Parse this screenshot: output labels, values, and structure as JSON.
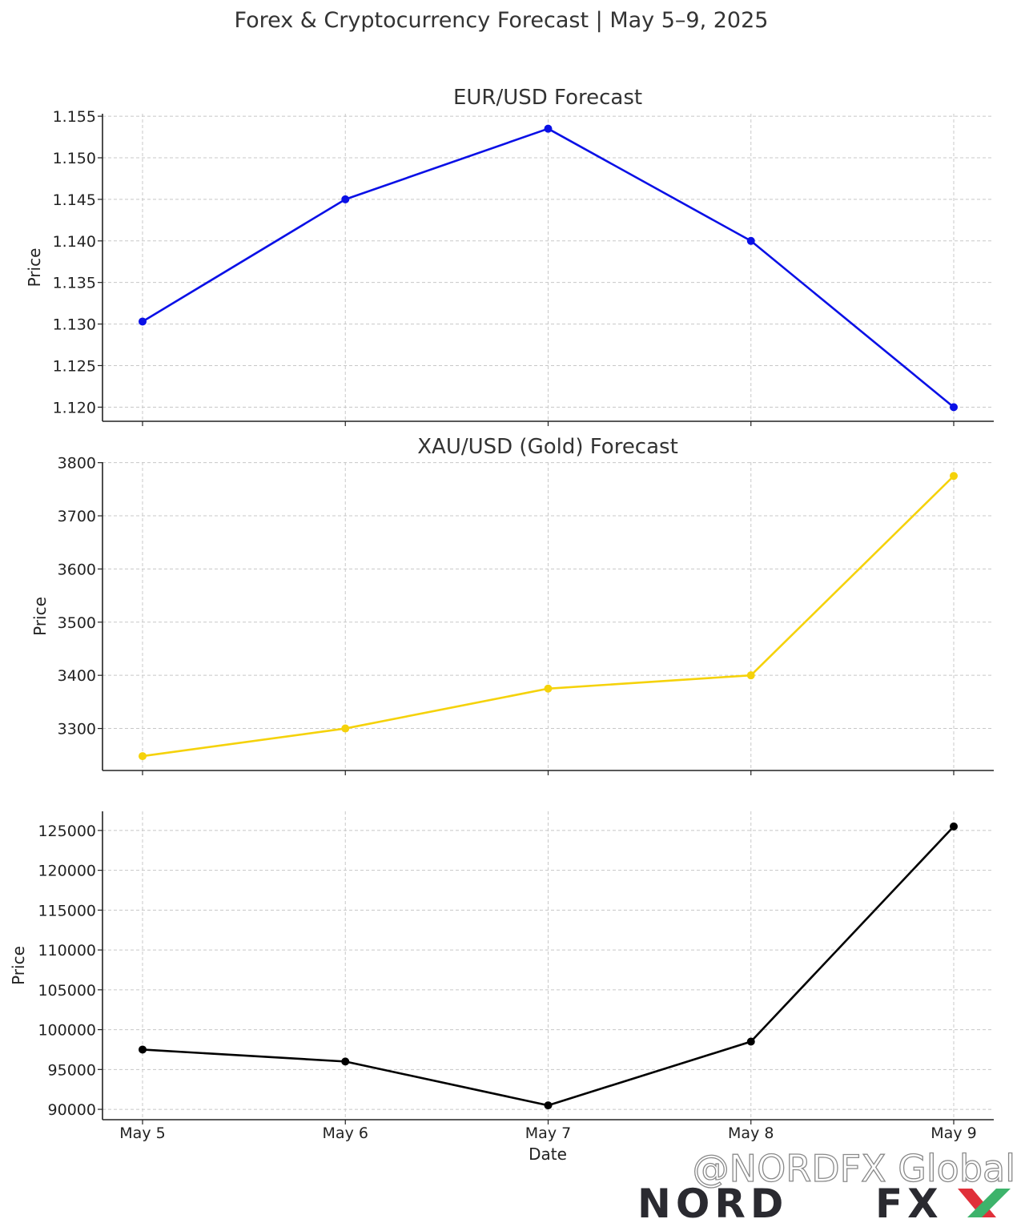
{
  "title": "Forex & Cryptocurrency Forecast | May 5–9, 2025",
  "watermark": {
    "handle": "@NORDFX Global",
    "brand_word1": "NORD",
    "brand_word2": "FX",
    "brand_colors": {
      "dark": "#2a2a30",
      "red": "#e0303a",
      "green": "#3db36b"
    }
  },
  "chart_data": [
    {
      "type": "line",
      "title": "EUR/USD Forecast",
      "xlabel": "",
      "ylabel": "Price",
      "categories": [
        "May 5",
        "May 6",
        "May 7",
        "May 8",
        "May 9"
      ],
      "series": [
        {
          "values": [
            1.1303,
            1.145,
            1.1535,
            1.14,
            1.12
          ],
          "color": "#0a10e6"
        }
      ],
      "ylim": [
        1.1183,
        1.1553
      ],
      "yticks": [
        1.12,
        1.125,
        1.13,
        1.135,
        1.14,
        1.145,
        1.15,
        1.155
      ],
      "ytick_labels": [
        "1.120",
        "1.125",
        "1.130",
        "1.135",
        "1.140",
        "1.145",
        "1.150",
        "1.155"
      ],
      "grid": true,
      "show_xtick_labels": false
    },
    {
      "type": "line",
      "title": "XAU/USD (Gold) Forecast",
      "xlabel": "",
      "ylabel": "Price",
      "categories": [
        "May 5",
        "May 6",
        "May 7",
        "May 8",
        "May 9"
      ],
      "series": [
        {
          "values": [
            3248,
            3300,
            3375,
            3400,
            3775
          ],
          "color": "#f5d20a"
        }
      ],
      "ylim": [
        3221,
        3801
      ],
      "yticks": [
        3300,
        3400,
        3500,
        3600,
        3700,
        3800
      ],
      "ytick_labels": [
        "3300",
        "3400",
        "3500",
        "3600",
        "3700",
        "3800"
      ],
      "grid": true,
      "show_xtick_labels": false
    },
    {
      "type": "line",
      "title": "",
      "xlabel": "Date",
      "ylabel": "Price",
      "categories": [
        "May 5",
        "May 6",
        "May 7",
        "May 8",
        "May 9"
      ],
      "series": [
        {
          "values": [
            97500,
            96000,
            90500,
            98500,
            125500
          ],
          "color": "#000000"
        }
      ],
      "ylim": [
        88700,
        127400
      ],
      "yticks": [
        90000,
        95000,
        100000,
        105000,
        110000,
        115000,
        120000,
        125000
      ],
      "ytick_labels": [
        "90000",
        "95000",
        "100000",
        "105000",
        "110000",
        "115000",
        "120000",
        "125000"
      ],
      "grid": true,
      "show_xtick_labels": true
    }
  ]
}
